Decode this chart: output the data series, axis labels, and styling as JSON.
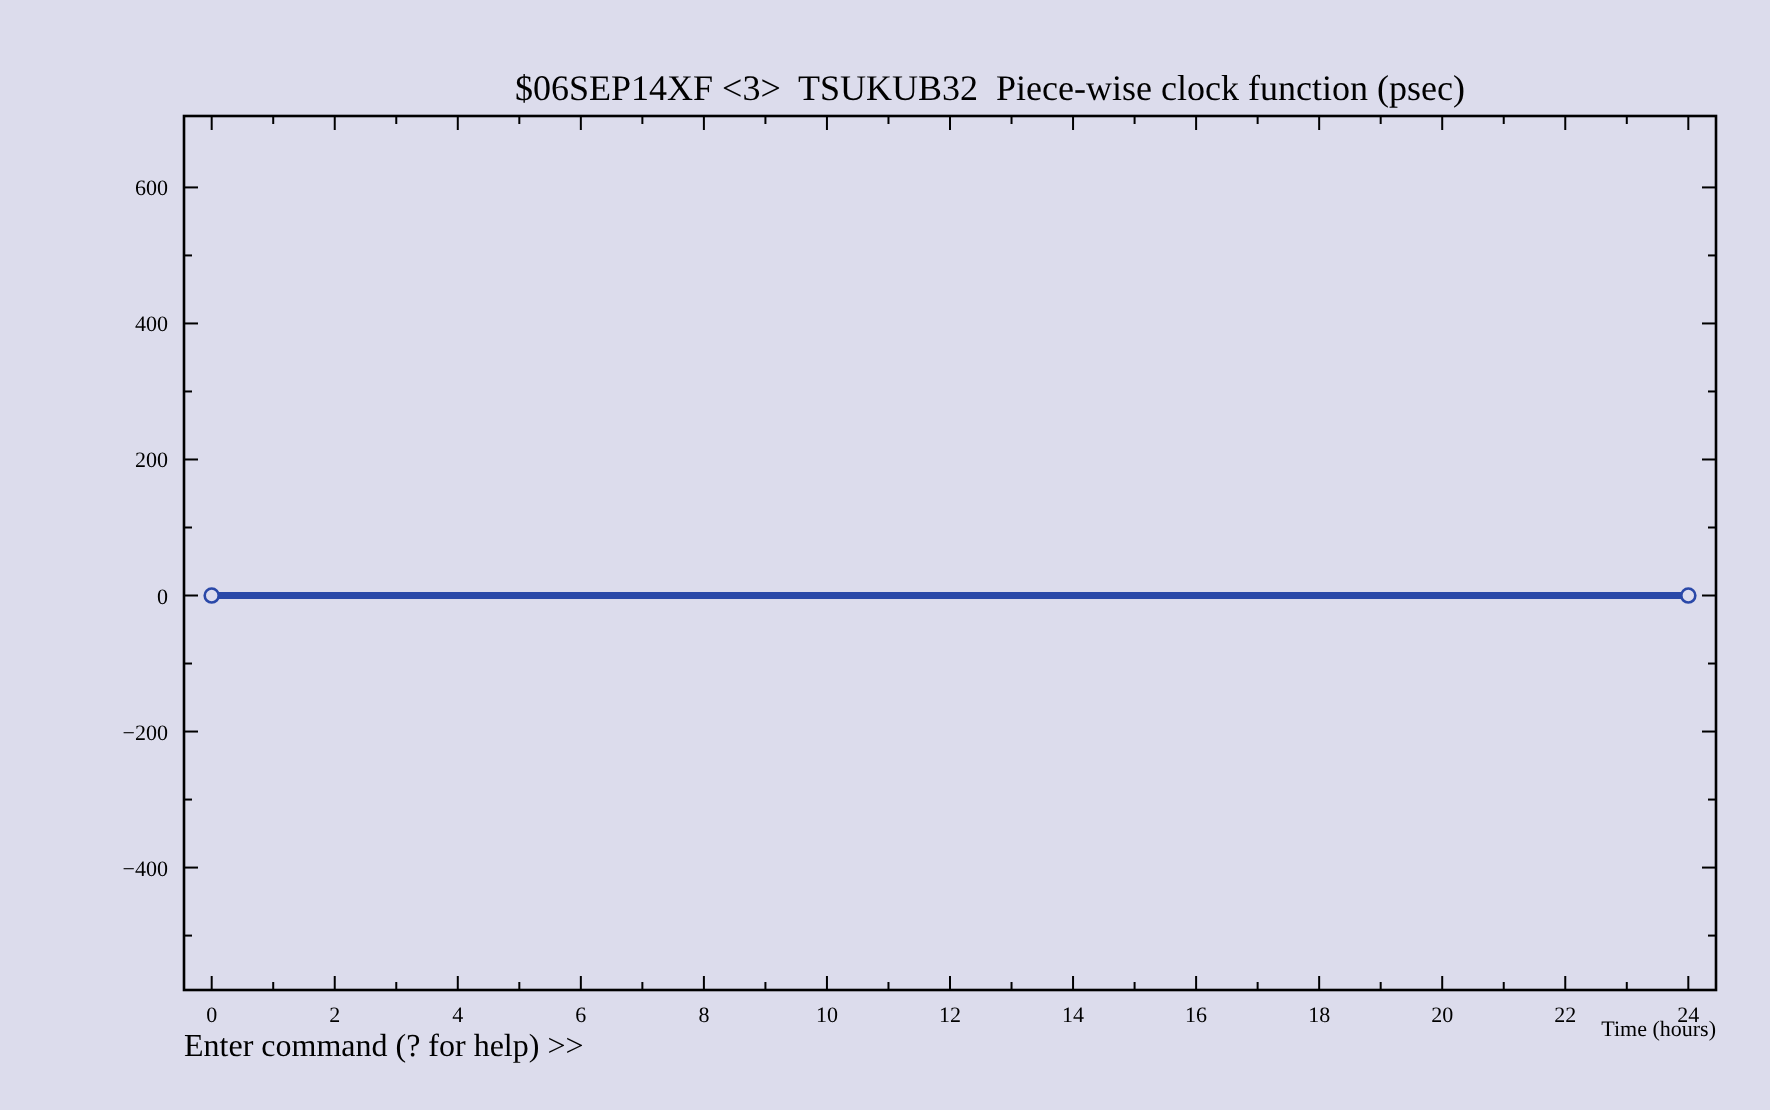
{
  "chart_data": {
    "type": "line",
    "title": "$06SEP14XF <3>  TSUKUB32  Piece-wise clock function (psec)",
    "xlabel": "Time (hours)",
    "annotations": [
      "Enter command (? for help) >>"
    ],
    "x": [
      0,
      24
    ],
    "series": [
      {
        "color": "#2a48a8",
        "values": [
          0,
          0
        ]
      }
    ],
    "marker": "circle",
    "line_style": "solid",
    "grid": false,
    "xlim": [
      -0.45,
      24.45
    ],
    "ylim": [
      -580,
      705
    ],
    "xticks": [
      0,
      {
        "value": 1,
        "label": null
      },
      2,
      {
        "value": 3,
        "label": null
      },
      4,
      {
        "value": 5,
        "label": null
      },
      6,
      {
        "value": 7,
        "label": null
      },
      8,
      {
        "value": 9,
        "label": null
      },
      10,
      {
        "value": 11,
        "label": null
      },
      12,
      {
        "value": 13,
        "label": null
      },
      14,
      {
        "value": 15,
        "label": null
      },
      16,
      {
        "value": 17,
        "label": null
      },
      18,
      {
        "value": 19,
        "label": null
      },
      20,
      {
        "value": 21,
        "label": null
      },
      22,
      {
        "value": 23,
        "label": null
      },
      24
    ],
    "yticks": [
      {
        "value": -500,
        "label": null
      },
      -400,
      {
        "value": -300,
        "label": null
      },
      -200,
      {
        "value": -100,
        "label": null
      },
      0,
      {
        "value": 100,
        "label": null
      },
      200,
      {
        "value": 300,
        "label": null
      },
      400,
      {
        "value": 500,
        "label": null
      },
      600
    ]
  }
}
